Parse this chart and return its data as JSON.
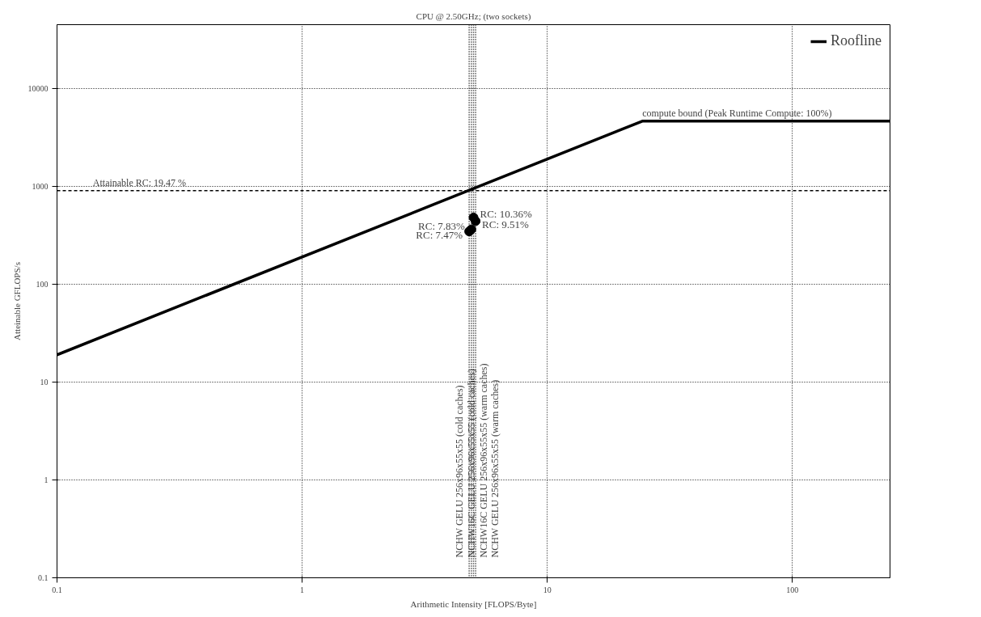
{
  "chart_data": {
    "type": "line",
    "title": "CPU @ 2.50GHz; (two sockets)",
    "xlabel": "Arithmetic Intensity [FLOPS/Byte]",
    "ylabel": "Atteinable GFLOPS/s",
    "log": "xy",
    "grid": true,
    "legend": "top right",
    "xlim": [
      0.1,
      250
    ],
    "ylim": [
      0.1,
      45000
    ],
    "xticks": [
      0.1,
      1,
      10,
      100
    ],
    "yticks": [
      0.1,
      1,
      10,
      100,
      1000,
      10000
    ],
    "series": [
      {
        "name": "Roofline",
        "color": "#000000",
        "x": [
          0.1,
          24.4,
          250
        ],
        "values": [
          19,
          4650,
          4650
        ]
      },
      {
        "type": "scatter",
        "marker": "circle",
        "color": "#000000",
        "x": [
          4.8,
          4.9,
          5.0,
          5.1
        ],
        "values": [
          347,
          364,
          482,
          442
        ]
      }
    ],
    "ref_lines": [
      {
        "axis": "y",
        "value": 905,
        "line_style": "dashed",
        "color": "#000000"
      },
      {
        "axis": "x",
        "value": 4.8,
        "label": "NCHW GELU 256x96x55x55 (cold caches)",
        "line_style": "dotted",
        "color": "#000000"
      },
      {
        "axis": "x",
        "value": 4.9,
        "label": "NCHW16C GELU 256x96x55x55 (cold caches)",
        "line_style": "dotted",
        "color": "#000000"
      },
      {
        "axis": "x",
        "value": 5.0,
        "label": "NCHW16C GELU 256x96x55x55 (warm caches)",
        "line_style": "dotted",
        "color": "#000000"
      },
      {
        "axis": "x",
        "value": 5.1,
        "label": "NCHW GELU 256x96x55x55 (warm caches)",
        "line_style": "dotted",
        "color": "#000000"
      }
    ],
    "annotations": [
      {
        "text": "RC: 7.47%",
        "x": 4.8,
        "y": 347
      },
      {
        "text": "RC: 7.83%",
        "x": 4.9,
        "y": 364
      },
      {
        "text": "RC: 10.36%",
        "x": 5.0,
        "y": 482
      },
      {
        "text": "RC: 9.51%",
        "x": 5.1,
        "y": 442
      },
      {
        "text": "compute bound (Peak Runtime Compute: 100%)",
        "x": 24.4,
        "y": 4650
      },
      {
        "text": "Attainable RC: 19.47 %",
        "x": 0.14,
        "y": 905
      }
    ]
  }
}
